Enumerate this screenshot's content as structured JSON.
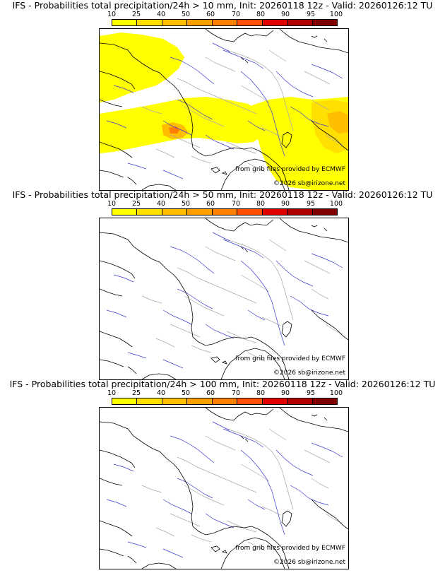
{
  "panels": [
    {
      "title": "IFS - Probabilities total precipitation/24h > 10 mm, Init: 20260118 12z - Valid: 20260126:12 TU",
      "credit_grib": "from grib files provided by ECMWF",
      "credit_site": "©2026 sb@irizone.net",
      "precip_fields": [
        {
          "region": "northwest-atlantic",
          "probability_band": "10-25"
        },
        {
          "region": "south-west-france",
          "probability_band": "10-25"
        },
        {
          "region": "pyrenees-core",
          "probability_band": "40-60"
        },
        {
          "region": "alps-italy-corsica",
          "probability_band": "10-40"
        }
      ]
    },
    {
      "title": "IFS - Probabilities total precipitation/24h > 50 mm, Init: 20260118 12z - Valid: 20260126:12 TU",
      "credit_grib": "from grib files provided by ECMWF",
      "credit_site": "©2026 sb@irizone.net",
      "precip_fields": []
    },
    {
      "title": "IFS - Probabilities total precipitation/24h > 100 mm, Init: 20260118 12z - Valid: 20260126:12 TU",
      "credit_grib": "from grib files provided by ECMWF",
      "credit_site": "©2026 sb@irizone.net",
      "precip_fields": []
    }
  ],
  "scale": {
    "ticks": [
      "10",
      "25",
      "40",
      "50",
      "60",
      "70",
      "80",
      "90",
      "95",
      "100"
    ],
    "colors": [
      "#ffff00",
      "#ffe000",
      "#ffbf00",
      "#ff9f00",
      "#ff7f00",
      "#ff4f00",
      "#e00000",
      "#b00000",
      "#800000"
    ]
  }
}
